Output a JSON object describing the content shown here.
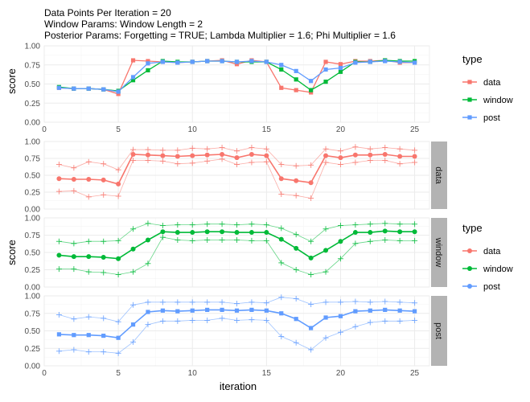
{
  "title": {
    "line1": "Data Points Per Iteration = 20",
    "line2": "Window Params:  Window Length = 2",
    "line3": "Posterior Params: Forgetting = TRUE; Lambda Multiplier = 1.6; Phi Multiplier = 1.6"
  },
  "colors": {
    "data": "#F8766D",
    "window": "#00BA38",
    "post": "#619CFF",
    "strip_bg": "#b3b3b3",
    "grid": "#ebebeb"
  },
  "chart_data": [
    {
      "type": "line",
      "panel": "combined",
      "xlabel": "",
      "ylabel": "score",
      "xlim": [
        0,
        26
      ],
      "ylim": [
        0,
        1
      ],
      "x_ticks": [
        0,
        5,
        10,
        15,
        20,
        25
      ],
      "y_ticks": [
        0,
        0.25,
        0.5,
        0.75,
        1
      ],
      "x_tick_labels": [
        "0",
        "5",
        "10",
        "15",
        "20",
        "25"
      ],
      "y_tick_labels": [
        "0.00",
        "0.25",
        "0.50",
        "0.75",
        "1.00"
      ],
      "legend": {
        "title": "type",
        "position": "right",
        "entries": [
          "data",
          "window",
          "post"
        ]
      },
      "x": [
        1,
        2,
        3,
        4,
        5,
        6,
        7,
        8,
        9,
        10,
        11,
        12,
        13,
        14,
        15,
        16,
        17,
        18,
        19,
        20,
        21,
        22,
        23,
        24,
        25
      ],
      "series": [
        {
          "name": "data",
          "values": [
            0.45,
            0.44,
            0.44,
            0.43,
            0.37,
            0.81,
            0.8,
            0.79,
            0.78,
            0.79,
            0.8,
            0.81,
            0.76,
            0.81,
            0.79,
            0.45,
            0.42,
            0.39,
            0.79,
            0.76,
            0.8,
            0.8,
            0.81,
            0.78,
            0.78
          ]
        },
        {
          "name": "window",
          "values": [
            0.46,
            0.44,
            0.44,
            0.43,
            0.41,
            0.55,
            0.68,
            0.8,
            0.79,
            0.79,
            0.8,
            0.8,
            0.79,
            0.79,
            0.79,
            0.69,
            0.56,
            0.42,
            0.53,
            0.66,
            0.79,
            0.79,
            0.81,
            0.8,
            0.8
          ]
        },
        {
          "name": "post",
          "values": [
            0.45,
            0.44,
            0.44,
            0.43,
            0.4,
            0.59,
            0.77,
            0.79,
            0.78,
            0.79,
            0.8,
            0.8,
            0.79,
            0.8,
            0.79,
            0.75,
            0.67,
            0.54,
            0.69,
            0.71,
            0.78,
            0.79,
            0.8,
            0.79,
            0.78
          ]
        }
      ]
    },
    {
      "type": "line",
      "panel": "facets",
      "xlabel": "iteration",
      "ylabel": "score",
      "xlim": [
        0,
        26
      ],
      "ylim": [
        0,
        1
      ],
      "x_ticks": [
        0,
        5,
        10,
        15,
        20,
        25
      ],
      "y_ticks": [
        0,
        0.25,
        0.5,
        0.75,
        1
      ],
      "x_tick_labels": [
        "0",
        "5",
        "10",
        "15",
        "20",
        "25"
      ],
      "y_tick_labels": [
        "0.00",
        "0.25",
        "0.50",
        "0.75",
        "1.00"
      ],
      "legend": {
        "title": "type",
        "position": "right",
        "entries": [
          "data",
          "window",
          "post"
        ]
      },
      "x": [
        1,
        2,
        3,
        4,
        5,
        6,
        7,
        8,
        9,
        10,
        11,
        12,
        13,
        14,
        15,
        16,
        17,
        18,
        19,
        20,
        21,
        22,
        23,
        24,
        25
      ],
      "facets": [
        {
          "name": "data",
          "mean": [
            0.45,
            0.44,
            0.44,
            0.43,
            0.37,
            0.81,
            0.8,
            0.79,
            0.78,
            0.79,
            0.8,
            0.81,
            0.76,
            0.81,
            0.79,
            0.45,
            0.42,
            0.39,
            0.79,
            0.76,
            0.8,
            0.8,
            0.81,
            0.78,
            0.78
          ],
          "upper": [
            0.66,
            0.61,
            0.7,
            0.67,
            0.58,
            0.88,
            0.88,
            0.87,
            0.87,
            0.9,
            0.89,
            0.91,
            0.86,
            0.91,
            0.89,
            0.66,
            0.64,
            0.65,
            0.89,
            0.86,
            0.92,
            0.89,
            0.91,
            0.89,
            0.87
          ],
          "lower": [
            0.26,
            0.27,
            0.18,
            0.21,
            0.19,
            0.72,
            0.72,
            0.71,
            0.67,
            0.68,
            0.71,
            0.74,
            0.66,
            0.69,
            0.7,
            0.22,
            0.2,
            0.16,
            0.69,
            0.66,
            0.69,
            0.72,
            0.72,
            0.67,
            0.69
          ]
        },
        {
          "name": "window",
          "mean": [
            0.46,
            0.44,
            0.44,
            0.43,
            0.41,
            0.55,
            0.68,
            0.8,
            0.79,
            0.79,
            0.8,
            0.8,
            0.79,
            0.79,
            0.79,
            0.69,
            0.56,
            0.42,
            0.53,
            0.66,
            0.79,
            0.79,
            0.81,
            0.8,
            0.8
          ],
          "upper": [
            0.66,
            0.63,
            0.66,
            0.66,
            0.67,
            0.84,
            0.92,
            0.89,
            0.9,
            0.9,
            0.91,
            0.91,
            0.9,
            0.91,
            0.9,
            0.85,
            0.76,
            0.66,
            0.84,
            0.89,
            0.9,
            0.91,
            0.92,
            0.91,
            0.91
          ],
          "lower": [
            0.26,
            0.26,
            0.22,
            0.21,
            0.18,
            0.22,
            0.34,
            0.72,
            0.68,
            0.67,
            0.68,
            0.68,
            0.68,
            0.67,
            0.67,
            0.35,
            0.25,
            0.18,
            0.22,
            0.41,
            0.63,
            0.66,
            0.68,
            0.67,
            0.67
          ]
        },
        {
          "name": "post",
          "mean": [
            0.45,
            0.44,
            0.44,
            0.43,
            0.4,
            0.59,
            0.77,
            0.79,
            0.78,
            0.79,
            0.8,
            0.8,
            0.79,
            0.8,
            0.79,
            0.75,
            0.67,
            0.54,
            0.69,
            0.71,
            0.78,
            0.79,
            0.8,
            0.79,
            0.78
          ],
          "upper": [
            0.73,
            0.67,
            0.7,
            0.68,
            0.63,
            0.87,
            0.91,
            0.91,
            0.91,
            0.91,
            0.91,
            0.91,
            0.89,
            0.91,
            0.9,
            0.98,
            0.96,
            0.88,
            0.91,
            0.91,
            0.92,
            0.91,
            0.92,
            0.91,
            0.9
          ],
          "lower": [
            0.21,
            0.23,
            0.2,
            0.2,
            0.18,
            0.34,
            0.59,
            0.64,
            0.64,
            0.65,
            0.65,
            0.68,
            0.65,
            0.66,
            0.65,
            0.42,
            0.33,
            0.23,
            0.4,
            0.48,
            0.56,
            0.62,
            0.64,
            0.64,
            0.65
          ]
        }
      ]
    }
  ]
}
